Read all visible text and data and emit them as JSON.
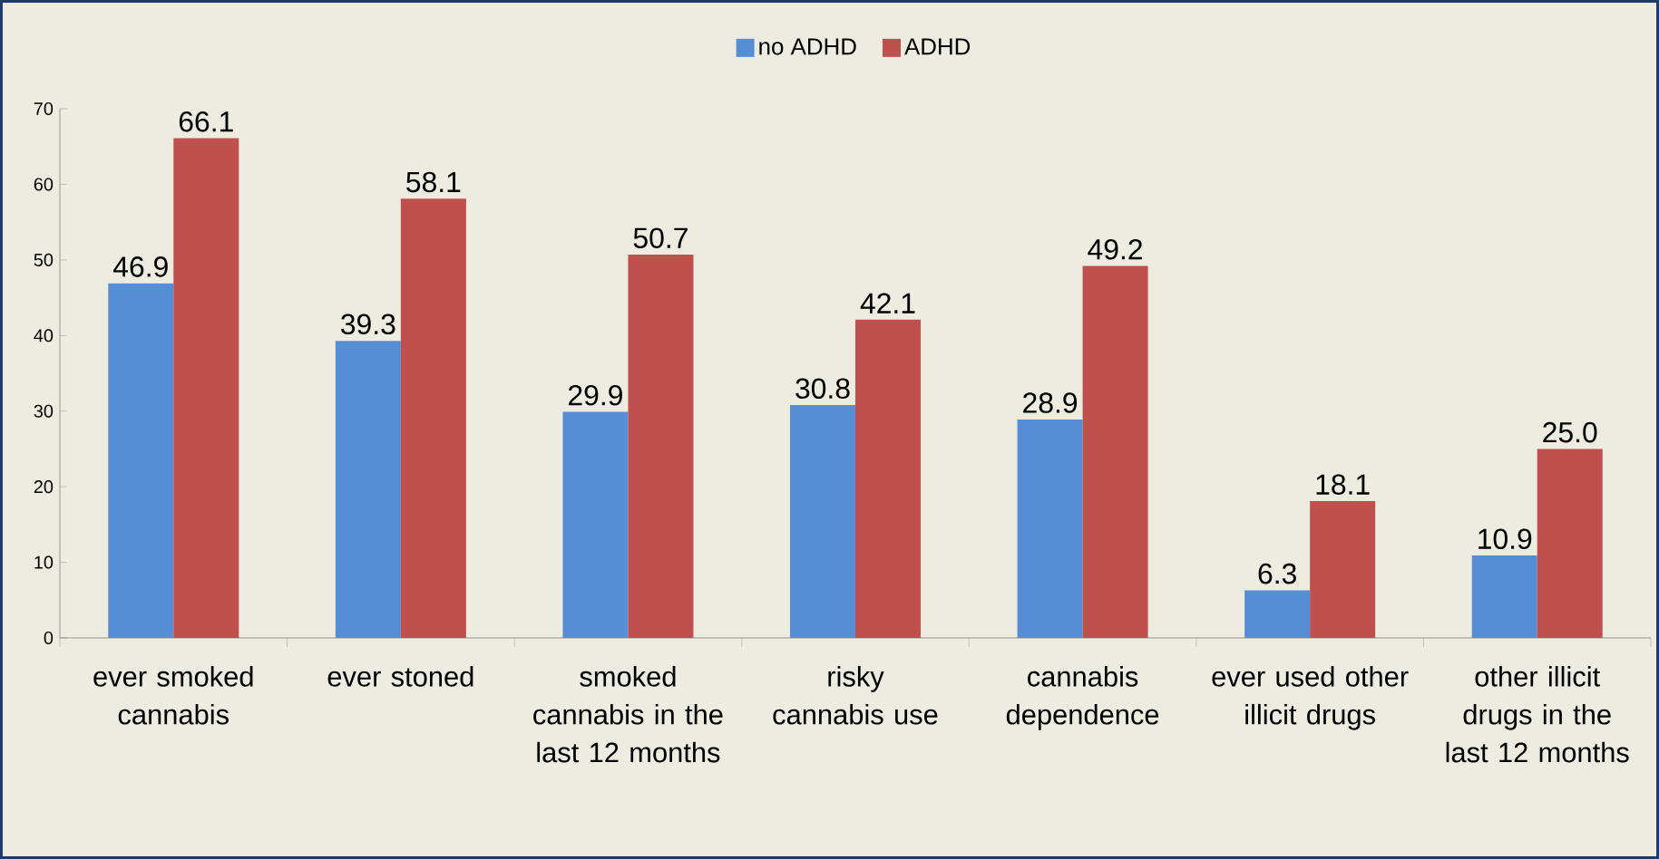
{
  "chart_data": {
    "type": "bar",
    "categories": [
      "ever smoked cannabis",
      "ever stoned",
      "smoked cannabis in the last 12 months",
      "risky cannabis use",
      "cannabis dependence",
      "ever used other illicit drugs",
      "other illicit drugs in the last 12 months"
    ],
    "series": [
      {
        "name": "no ADHD",
        "color": "#558ed5",
        "values": [
          46.9,
          39.3,
          29.9,
          30.8,
          28.9,
          6.3,
          10.9
        ],
        "value_labels": [
          "46.9",
          "39.3",
          "29.9",
          "30.8",
          "28.9",
          "6.3",
          "10.9"
        ]
      },
      {
        "name": "ADHD",
        "color": "#c0504d",
        "values": [
          66.1,
          58.1,
          50.7,
          42.1,
          49.2,
          18.1,
          25.0
        ],
        "value_labels": [
          "66.1",
          "58.1",
          "50.7",
          "42.1",
          "49.2",
          "18.1",
          "25.0"
        ]
      }
    ],
    "ylim": [
      0,
      70
    ],
    "yticks": [
      0,
      10,
      20,
      30,
      40,
      50,
      60,
      70
    ],
    "legend": "top",
    "grid": false
  }
}
